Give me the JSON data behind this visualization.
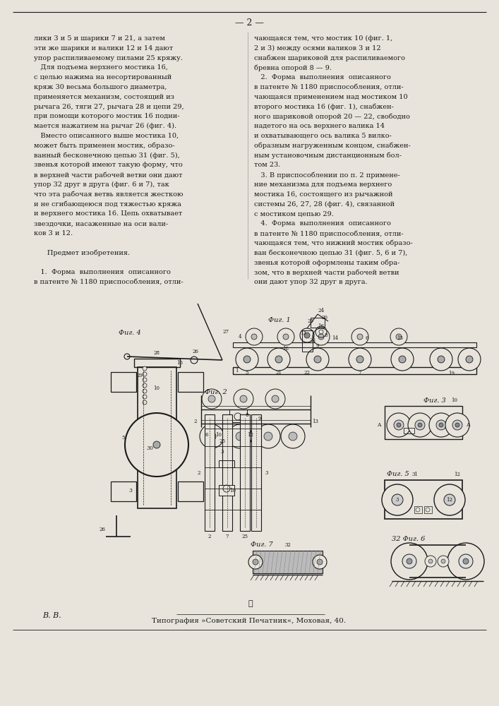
{
  "page_number": "— 2 —",
  "background_color": "#e8e4dc",
  "text_color": "#1a1a1a",
  "left_column_lines": [
    "лики 3 и 5 и шарики 7 и 21, а затем",
    "эти же шарики и валики 12 и 14 дают",
    "упор распиливаемому пилами 25 кряжу.",
    "   Для подъема верхнего мостика 16,",
    "с целью нажима на несортированный",
    "кряж 30 весьма большого диаметра,",
    "применяется механизм, состоящий из",
    "рычага 26, тяги 27, рычага 28 и цепи 29,",
    "при помощи которого мостик 16 подни-",
    "мается нажатием на рычаг 26 (фиг. 4).",
    "   Вместо описанного выше мостика 10,",
    "может быть применен мостик, образо-",
    "ванный бесконечною цепью 31 (фиг. 5),",
    "звенья которой имеют такую форму, что",
    "в верхней части рабочей ветви они дают",
    "упор 32 друг в друга (фиг. 6 и 7), так",
    "что эта рабочая ветвь является жесткою",
    "и не сгибающеюся под тяжестью кряжа",
    "и верхнего мостика 16. Цепь охватывает",
    "звездочки, насаженные на оси вали-",
    "ков 3 и 12.",
    "",
    "      Предмет изобретения.",
    "",
    "   1.  Форма  выполнения  описанного",
    "в патенте № 1180 приспособления, отли-"
  ],
  "right_column_lines": [
    "чающаяся тем, что мостик 10 (фиг. 1,",
    "2 и 3) между осями валиков 3 и 12",
    "снабжен шариковой для распиливаемого",
    "бревна опорой 8 — 9.",
    "   2.  Форма  выполнения  описанного",
    "в патенте № 1180 приспособления, отли-",
    "чающаяся применением над мостиком 10",
    "второго мостика 16 (фиг. 1), снабжен-",
    "ного шариковой опорой 20 — 22, свободно",
    "надетого на ось верхнего валика 14",
    "и охватывающего ось валика 5 вилко-",
    "образным нагруженным концом, снабжен-",
    "ным установочным дистанционным бол-",
    "том 23.",
    "   3. В приспособлении по п. 2 примене-",
    "ние механизма для подъема верхнего",
    "мостика 16, состоящего из рычажной",
    "системы 26, 27, 28 (фиг. 4), связанной",
    "с мостиком цепью 29.",
    "   4.  Форма  выполнения  описанного",
    "в патенте № 1180 приспособления, отли-",
    "чающаяся тем, что нижний мостик образо-",
    "ван бесконечною цепью 31 (фиг. 5, 6 и 7),",
    "звенья которой оформлены таким обра-",
    "зом, что в верхней части рабочей ветви",
    "они дают упор 32 друг в друга."
  ],
  "footer_left": "В. В.",
  "footer_center": "Типография »Советский Печатник«, Моховая, 40.",
  "line_color": "#1a1a1a",
  "light_line": "#555555"
}
